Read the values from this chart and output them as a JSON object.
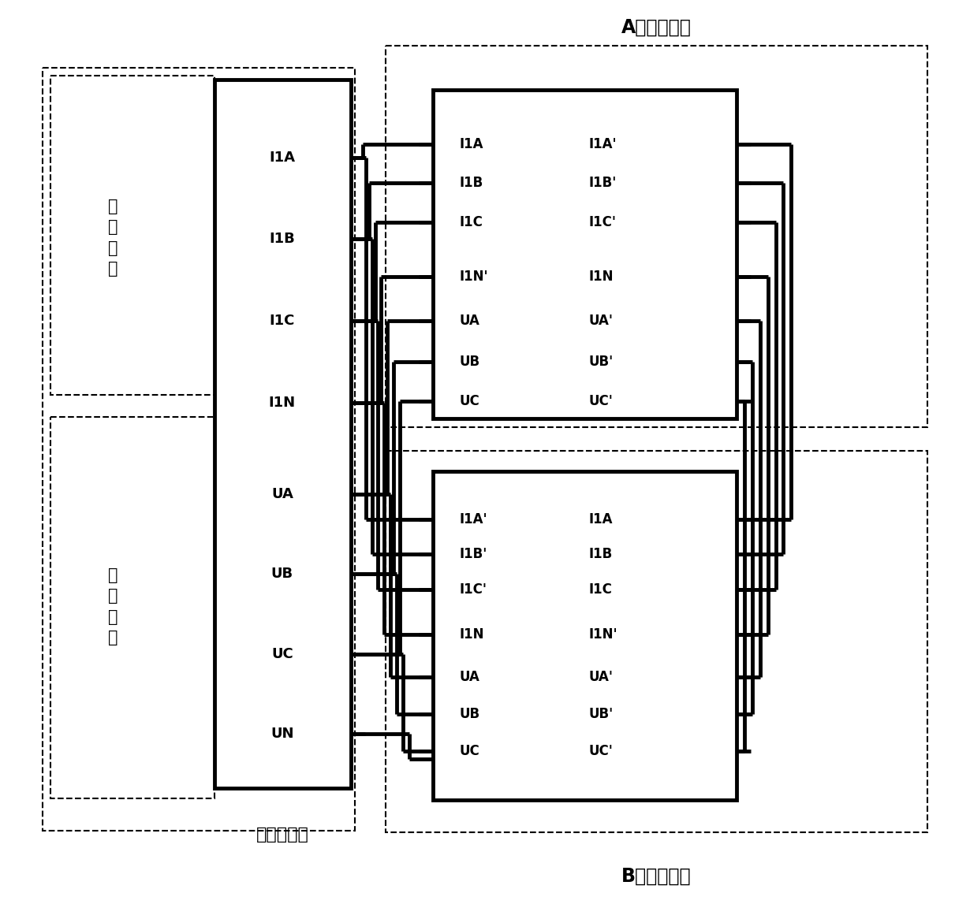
{
  "bg": "#ffffff",
  "lc": "#000000",
  "lw": 2.5,
  "tlw": 3.5,
  "fs": 13,
  "fs_cn": 15,
  "fs_title": 17,
  "tester_label": "试验保护仪",
  "current_label": "电流回路",
  "voltage_label": "电压回路",
  "A_title": "A屏保护装置",
  "B_title": "B屏保护装置",
  "tester_ports_current": [
    "I1A",
    "I1B",
    "I1C",
    "I1N"
  ],
  "tester_ports_voltage": [
    "UA",
    "UB",
    "UC",
    "UN"
  ],
  "A_ports_left": [
    "I1A",
    "I1B",
    "I1C",
    "I1N'",
    "UA",
    "UB",
    "UC"
  ],
  "A_ports_right": [
    "I1A'",
    "I1B'",
    "I1C'",
    "I1N",
    "UA'",
    "UB'",
    "UC'"
  ],
  "B_ports_left": [
    "I1A'",
    "I1B'",
    "I1C'",
    "I1N",
    "UA",
    "UB",
    "UC"
  ],
  "B_ports_right": [
    "I1A",
    "I1B",
    "I1C",
    "I1N'",
    "UA'",
    "UB'",
    "UC'"
  ]
}
